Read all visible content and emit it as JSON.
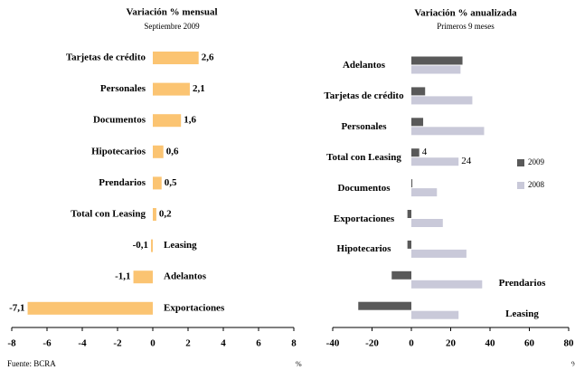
{
  "chart_data": [
    {
      "type": "bar",
      "orientation": "horizontal",
      "title": "Variación %  mensual",
      "subtitle": "Septiembre 2009",
      "categories": [
        "Tarjetas de crédito",
        "Personales",
        "Documentos",
        "Hipotecarios",
        "Prendarios",
        "Total con Leasing",
        "Leasing",
        "Adelantos",
        "Exportaciones"
      ],
      "values": [
        2.6,
        2.1,
        1.6,
        0.6,
        0.5,
        0.2,
        -0.1,
        -1.1,
        -7.1
      ],
      "value_labels": [
        "2,6",
        "2,1",
        "1,6",
        "0,6",
        "0,5",
        "0,2",
        "-0,1",
        "-1,1",
        "-7,1"
      ],
      "color": "#fbc472",
      "xlim": [
        -8,
        8
      ],
      "xticks": [
        -8,
        -6,
        -4,
        -2,
        0,
        2,
        4,
        6,
        8
      ],
      "xlabel": "%",
      "source": "Fuente: BCRA"
    },
    {
      "type": "grouped-bar",
      "orientation": "horizontal",
      "title": "Variación % anualizada",
      "subtitle": "Primeros 9 meses",
      "categories": [
        "Adelantos",
        "Tarjetas de crédito",
        "Personales",
        "Total con Leasing",
        "Documentos",
        "Exportaciones",
        "Hipotecarios",
        "Prendarios",
        "Leasing"
      ],
      "series": [
        {
          "name": "2009",
          "color": "#595959",
          "values": [
            26,
            7,
            6,
            4,
            0.5,
            -2,
            -2,
            -10,
            -27
          ],
          "value_labels": [
            null,
            null,
            null,
            "4",
            null,
            null,
            null,
            null,
            null
          ]
        },
        {
          "name": "2008",
          "color": "#c9c9d9",
          "values": [
            25,
            31,
            37,
            24,
            13,
            16,
            28,
            36,
            24
          ],
          "value_labels": [
            null,
            null,
            null,
            "24",
            null,
            null,
            null,
            null,
            null
          ]
        }
      ],
      "xlim": [
        -40,
        80
      ],
      "xticks": [
        -40,
        -20,
        0,
        20,
        40,
        60,
        80
      ],
      "xlabel": "%"
    }
  ]
}
